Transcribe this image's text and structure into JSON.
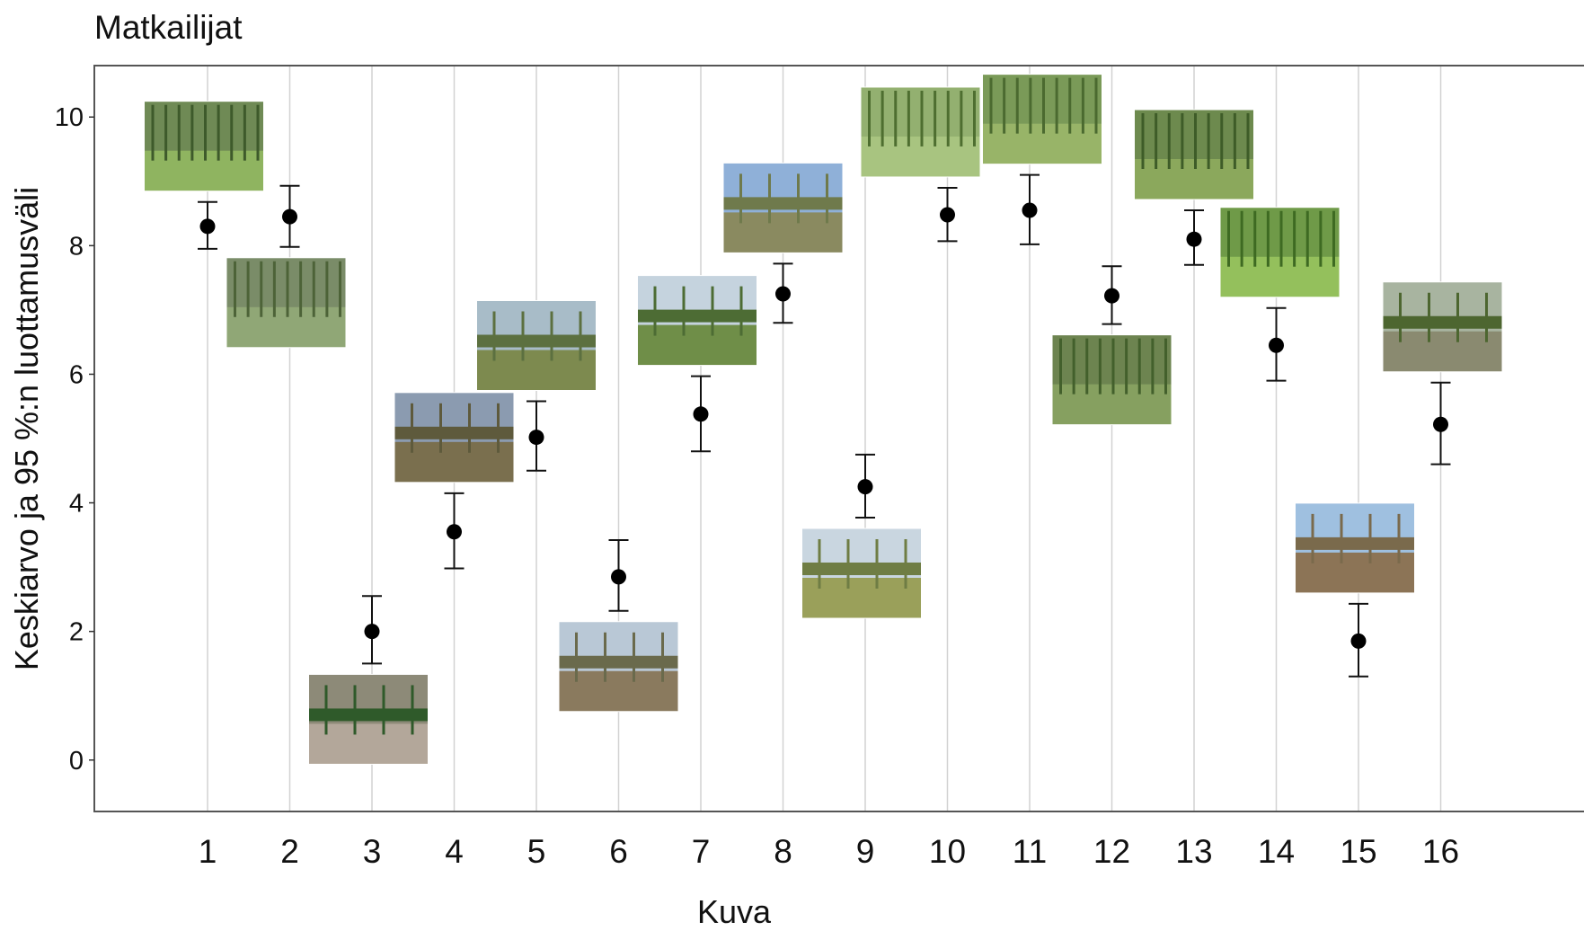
{
  "chart_data": {
    "type": "scatter",
    "title": "Matkailijat",
    "xlabel": "Kuva",
    "ylabel": "Keskiarvo ja 95 %:n luottamusväli",
    "categories": [
      "1",
      "2",
      "3",
      "4",
      "5",
      "6",
      "7",
      "8",
      "9",
      "10",
      "11",
      "12",
      "13",
      "14",
      "15",
      "16"
    ],
    "ylim": [
      -0.8,
      10.8
    ],
    "yticks": [
      0,
      2,
      4,
      6,
      8,
      10
    ],
    "grid": "vertical",
    "series": [
      {
        "mean": [
          8.3,
          8.45,
          2.0,
          3.55,
          5.02,
          2.85,
          5.38,
          7.25,
          4.25,
          8.48,
          8.55,
          7.22,
          8.1,
          6.45,
          1.85,
          5.22
        ],
        "lower": [
          7.95,
          7.98,
          1.5,
          2.98,
          4.5,
          2.32,
          4.8,
          6.8,
          3.77,
          8.07,
          8.02,
          6.78,
          7.7,
          5.9,
          1.3,
          4.6
        ],
        "upper": [
          8.68,
          8.93,
          2.55,
          4.15,
          5.58,
          3.42,
          5.97,
          7.72,
          4.75,
          8.9,
          9.1,
          7.68,
          8.55,
          7.03,
          2.43,
          5.87
        ]
      }
    ],
    "photos": [
      {
        "icon": "forest-photo",
        "colors": [
          "#6f8a55",
          "#3e5a2b",
          "#8fb460"
        ]
      },
      {
        "icon": "forest-photo",
        "colors": [
          "#7a8c68",
          "#4d6338",
          "#90a776"
        ]
      },
      {
        "icon": "clearcut-photo",
        "colors": [
          "#8d8a78",
          "#2f5a2a",
          "#b3a79a"
        ]
      },
      {
        "icon": "clearcut-photo",
        "colors": [
          "#8b9bb0",
          "#5e5a3c",
          "#7a6f4e"
        ]
      },
      {
        "icon": "clearcut-photo",
        "colors": [
          "#a8bcc8",
          "#5c7040",
          "#7d8a4f"
        ]
      },
      {
        "icon": "clearcut-photo",
        "colors": [
          "#b9c8d6",
          "#6a6a4c",
          "#8a7a5e"
        ]
      },
      {
        "icon": "clearcut-photo",
        "colors": [
          "#c5d3de",
          "#4d6c34",
          "#6f8e48"
        ]
      },
      {
        "icon": "clearcut-photo",
        "colors": [
          "#8fb0d8",
          "#6f7a4c",
          "#8a8a60"
        ]
      },
      {
        "icon": "clearcut-photo",
        "colors": [
          "#c9d6e0",
          "#6f7d44",
          "#9aa05a"
        ]
      },
      {
        "icon": "forest-photo",
        "colors": [
          "#93b070",
          "#4e6e30",
          "#a8c480"
        ]
      },
      {
        "icon": "forest-photo",
        "colors": [
          "#7a9a58",
          "#4b6a30",
          "#98b468"
        ]
      },
      {
        "icon": "forest-photo",
        "colors": [
          "#6d8450",
          "#43602c",
          "#86a060"
        ]
      },
      {
        "icon": "forest-photo",
        "colors": [
          "#6d8a4e",
          "#3e5c28",
          "#8ba85c"
        ]
      },
      {
        "icon": "forest-photo",
        "colors": [
          "#6f9a48",
          "#3e6a22",
          "#94c05c"
        ]
      },
      {
        "icon": "clearcut-photo",
        "colors": [
          "#9fc0e0",
          "#7a6a4c",
          "#8c7456"
        ]
      },
      {
        "icon": "clearcut-photo",
        "colors": [
          "#a8b4a0",
          "#4d6630",
          "#8a8a70"
        ]
      }
    ]
  }
}
